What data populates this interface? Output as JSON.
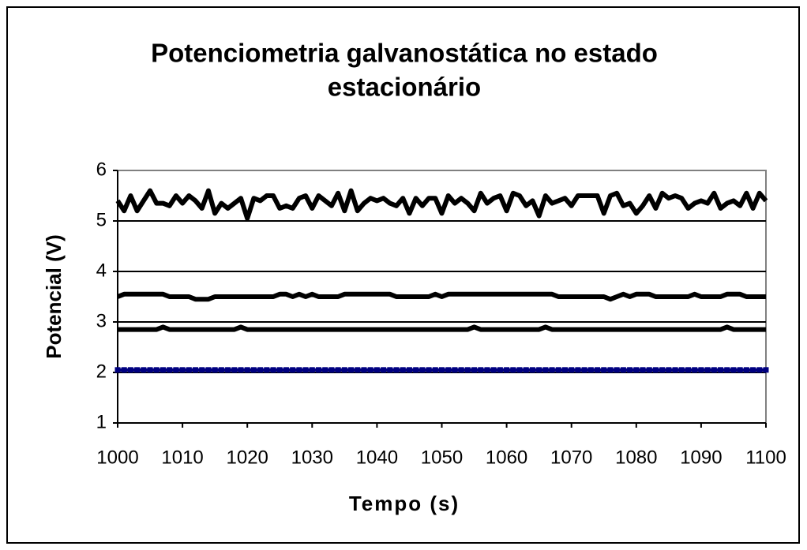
{
  "chart_data": {
    "type": "line",
    "title": [
      "Potenciometria galvanostática no estado",
      "estacionário"
    ],
    "x_label": "Tempo (s)",
    "y_label": "Potencial (V)",
    "x": [
      1000,
      1001,
      1002,
      1003,
      1004,
      1005,
      1006,
      1007,
      1008,
      1009,
      1010,
      1011,
      1012,
      1013,
      1014,
      1015,
      1016,
      1017,
      1018,
      1019,
      1020,
      1021,
      1022,
      1023,
      1024,
      1025,
      1026,
      1027,
      1028,
      1029,
      1030,
      1031,
      1032,
      1033,
      1034,
      1035,
      1036,
      1037,
      1038,
      1039,
      1040,
      1041,
      1042,
      1043,
      1044,
      1045,
      1046,
      1047,
      1048,
      1049,
      1050,
      1051,
      1052,
      1053,
      1054,
      1055,
      1056,
      1057,
      1058,
      1059,
      1060,
      1061,
      1062,
      1063,
      1064,
      1065,
      1066,
      1067,
      1068,
      1069,
      1070,
      1071,
      1072,
      1073,
      1074,
      1075,
      1076,
      1077,
      1078,
      1079,
      1080,
      1081,
      1082,
      1083,
      1084,
      1085,
      1086,
      1087,
      1088,
      1089,
      1090,
      1091,
      1092,
      1093,
      1094,
      1095,
      1096,
      1097,
      1098,
      1099,
      1100
    ],
    "series": [
      {
        "color": "#000000",
        "values": [
          5.4,
          5.2,
          5.5,
          5.2,
          5.4,
          5.6,
          5.35,
          5.35,
          5.3,
          5.5,
          5.35,
          5.5,
          5.4,
          5.25,
          5.6,
          5.15,
          5.35,
          5.25,
          5.35,
          5.45,
          5.05,
          5.45,
          5.4,
          5.5,
          5.5,
          5.25,
          5.3,
          5.25,
          5.45,
          5.5,
          5.25,
          5.5,
          5.4,
          5.3,
          5.55,
          5.2,
          5.6,
          5.2,
          5.35,
          5.45,
          5.4,
          5.45,
          5.35,
          5.3,
          5.45,
          5.15,
          5.45,
          5.3,
          5.45,
          5.45,
          5.15,
          5.5,
          5.35,
          5.45,
          5.35,
          5.2,
          5.55,
          5.35,
          5.45,
          5.5,
          5.2,
          5.55,
          5.5,
          5.3,
          5.4,
          5.1,
          5.5,
          5.35,
          5.4,
          5.45,
          5.3,
          5.5,
          5.5,
          5.5,
          5.5,
          5.15,
          5.5,
          5.55,
          5.3,
          5.35,
          5.15,
          5.3,
          5.5,
          5.25,
          5.55,
          5.45,
          5.5,
          5.45,
          5.25,
          5.35,
          5.4,
          5.35,
          5.55,
          5.25,
          5.35,
          5.4,
          5.3,
          5.55,
          5.25,
          5.55,
          5.4
        ]
      },
      {
        "color": "#000000",
        "values": [
          3.5,
          3.55,
          3.55,
          3.55,
          3.55,
          3.55,
          3.55,
          3.55,
          3.5,
          3.5,
          3.5,
          3.5,
          3.45,
          3.45,
          3.45,
          3.5,
          3.5,
          3.5,
          3.5,
          3.5,
          3.5,
          3.5,
          3.5,
          3.5,
          3.5,
          3.55,
          3.55,
          3.5,
          3.55,
          3.5,
          3.55,
          3.5,
          3.5,
          3.5,
          3.5,
          3.55,
          3.55,
          3.55,
          3.55,
          3.55,
          3.55,
          3.55,
          3.55,
          3.5,
          3.5,
          3.5,
          3.5,
          3.5,
          3.5,
          3.55,
          3.5,
          3.55,
          3.55,
          3.55,
          3.55,
          3.55,
          3.55,
          3.55,
          3.55,
          3.55,
          3.55,
          3.55,
          3.55,
          3.55,
          3.55,
          3.55,
          3.55,
          3.55,
          3.5,
          3.5,
          3.5,
          3.5,
          3.5,
          3.5,
          3.5,
          3.5,
          3.45,
          3.5,
          3.55,
          3.5,
          3.55,
          3.55,
          3.55,
          3.5,
          3.5,
          3.5,
          3.5,
          3.5,
          3.5,
          3.55,
          3.5,
          3.5,
          3.5,
          3.5,
          3.55,
          3.55,
          3.55,
          3.5,
          3.5,
          3.5,
          3.5
        ]
      },
      {
        "color": "#000000",
        "values": [
          2.85,
          2.85,
          2.85,
          2.85,
          2.85,
          2.85,
          2.85,
          2.9,
          2.85,
          2.85,
          2.85,
          2.85,
          2.85,
          2.85,
          2.85,
          2.85,
          2.85,
          2.85,
          2.85,
          2.9,
          2.85,
          2.85,
          2.85,
          2.85,
          2.85,
          2.85,
          2.85,
          2.85,
          2.85,
          2.85,
          2.85,
          2.85,
          2.85,
          2.85,
          2.85,
          2.85,
          2.85,
          2.85,
          2.85,
          2.85,
          2.85,
          2.85,
          2.85,
          2.85,
          2.85,
          2.85,
          2.85,
          2.85,
          2.85,
          2.85,
          2.85,
          2.85,
          2.85,
          2.85,
          2.85,
          2.9,
          2.85,
          2.85,
          2.85,
          2.85,
          2.85,
          2.85,
          2.85,
          2.85,
          2.85,
          2.85,
          2.9,
          2.85,
          2.85,
          2.85,
          2.85,
          2.85,
          2.85,
          2.85,
          2.85,
          2.85,
          2.85,
          2.85,
          2.85,
          2.85,
          2.85,
          2.85,
          2.85,
          2.85,
          2.85,
          2.85,
          2.85,
          2.85,
          2.85,
          2.85,
          2.85,
          2.85,
          2.85,
          2.85,
          2.9,
          2.85,
          2.85,
          2.85,
          2.85,
          2.85,
          2.85
        ]
      },
      {
        "color": "#000080",
        "markers": true,
        "values": [
          2.05,
          2.05,
          2.05,
          2.05,
          2.05,
          2.05,
          2.05,
          2.05,
          2.05,
          2.05,
          2.05,
          2.05,
          2.05,
          2.05,
          2.05,
          2.05,
          2.05,
          2.05,
          2.05,
          2.05,
          2.05,
          2.05,
          2.05,
          2.05,
          2.05,
          2.05,
          2.05,
          2.05,
          2.05,
          2.05,
          2.05,
          2.05,
          2.05,
          2.05,
          2.05,
          2.05,
          2.05,
          2.05,
          2.05,
          2.05,
          2.05,
          2.05,
          2.05,
          2.05,
          2.05,
          2.05,
          2.05,
          2.05,
          2.05,
          2.05,
          2.05,
          2.05,
          2.05,
          2.05,
          2.05,
          2.05,
          2.05,
          2.05,
          2.05,
          2.05,
          2.05,
          2.05,
          2.05,
          2.05,
          2.05,
          2.05,
          2.05,
          2.05,
          2.05,
          2.05,
          2.05,
          2.05,
          2.05,
          2.05,
          2.05,
          2.05,
          2.05,
          2.05,
          2.05,
          2.05,
          2.05,
          2.05,
          2.05,
          2.05,
          2.05,
          2.05,
          2.05,
          2.05,
          2.05,
          2.05,
          2.05,
          2.05,
          2.05,
          2.05,
          2.05,
          2.05,
          2.05,
          2.05,
          2.05,
          2.05,
          2.05
        ]
      }
    ],
    "xlim": [
      1000,
      1100
    ],
    "xticks": [
      1000,
      1010,
      1020,
      1030,
      1040,
      1050,
      1060,
      1070,
      1080,
      1090,
      1100
    ],
    "ylim": [
      1,
      6
    ],
    "yticks": [
      1,
      2,
      3,
      4,
      5,
      6
    ],
    "grid": true
  }
}
